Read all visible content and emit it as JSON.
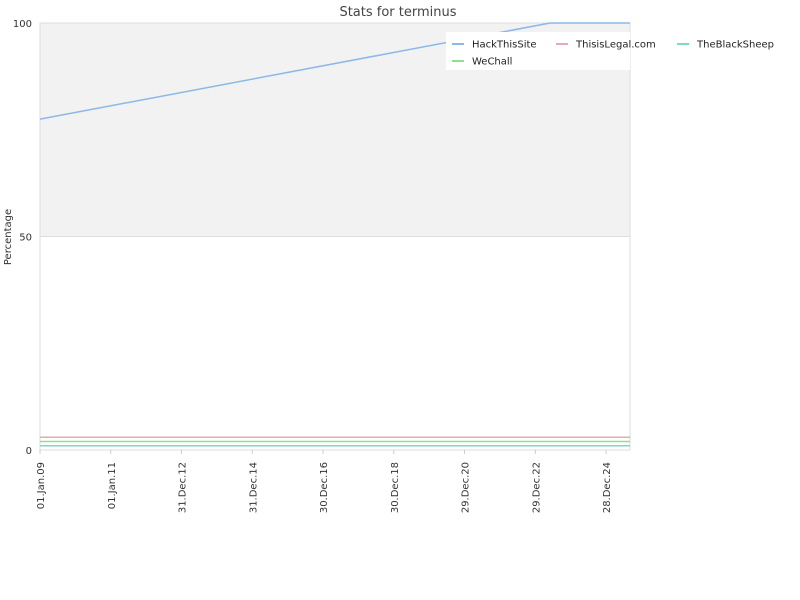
{
  "chart_data": {
    "type": "line",
    "title": "Stats for terminus",
    "xlabel": "",
    "ylabel": "Percentage",
    "ylim": [
      0,
      100
    ],
    "x_range": [
      "2009-01-01",
      "2025-09-01"
    ],
    "x_tick_labels": [
      "01.Jan.09",
      "01.Jan.11",
      "31.Dec.12",
      "31.Dec.14",
      "30.Dec.16",
      "30.Dec.18",
      "29.Dec.20",
      "29.Dec.22",
      "28.Dec.24"
    ],
    "x_tick_dates": [
      "2009-01-01",
      "2011-01-01",
      "2012-12-31",
      "2014-12-31",
      "2016-12-30",
      "2018-12-30",
      "2020-12-29",
      "2022-12-29",
      "2024-12-28"
    ],
    "y_ticks": [
      0,
      50,
      100
    ],
    "shaded_band": [
      50,
      100
    ],
    "grid": false,
    "legend_position": "top-right",
    "series": [
      {
        "name": "HackThisSite",
        "color": "#8ab8e8",
        "points": [
          [
            "2009-01-01",
            77.5
          ],
          [
            "2023-06-01",
            100
          ],
          [
            "2025-09-01",
            100
          ]
        ]
      },
      {
        "name": "ThisisLegal.com",
        "color": "#e8a8b8",
        "points": [
          [
            "2009-01-01",
            3
          ],
          [
            "2025-09-01",
            3
          ]
        ]
      },
      {
        "name": "TheBlackSheep",
        "color": "#7ed8c8",
        "points": [
          [
            "2009-01-01",
            1
          ],
          [
            "2025-09-01",
            1
          ]
        ]
      },
      {
        "name": "WeChall",
        "color": "#90e090",
        "points": [
          [
            "2009-01-01",
            2
          ],
          [
            "2025-09-01",
            2
          ]
        ]
      }
    ]
  }
}
